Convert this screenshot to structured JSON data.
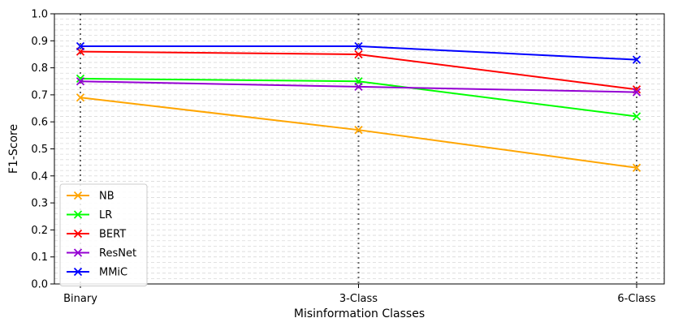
{
  "chart_data": {
    "type": "line",
    "xlabel": "Misinformation Classes",
    "ylabel": "F1-Score",
    "categories": [
      "Binary",
      "3-Class",
      "6-Class"
    ],
    "ylim": [
      0.0,
      1.0
    ],
    "yticks": [
      "0.0",
      "0.1",
      "0.2",
      "0.3",
      "0.4",
      "0.5",
      "0.6",
      "0.7",
      "0.8",
      "0.9",
      "1.0"
    ],
    "grid": "horizontal dashed light gray, dotted vertical lines at categories",
    "legend_position": "lower-left",
    "marker": "x",
    "series": [
      {
        "name": "NB",
        "color": "#ffa500",
        "values": [
          0.69,
          0.57,
          0.43
        ]
      },
      {
        "name": "LR",
        "color": "#00ff00",
        "values": [
          0.76,
          0.75,
          0.62
        ]
      },
      {
        "name": "BERT",
        "color": "#ff0000",
        "values": [
          0.86,
          0.85,
          0.72
        ]
      },
      {
        "name": "ResNet",
        "color": "#9400d3",
        "values": [
          0.75,
          0.73,
          0.71
        ]
      },
      {
        "name": "MMiC",
        "color": "#0000ff",
        "values": [
          0.88,
          0.88,
          0.83
        ]
      }
    ]
  }
}
